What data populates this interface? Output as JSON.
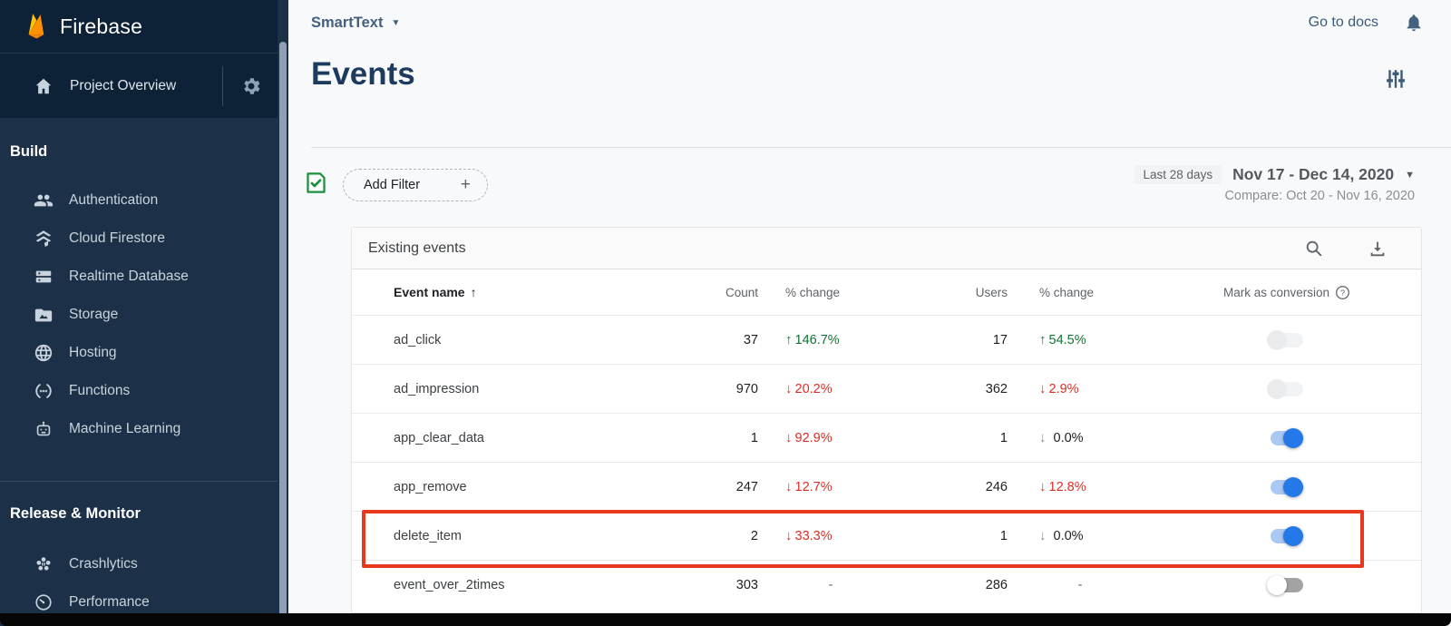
{
  "sidebar": {
    "brand": "Firebase",
    "project_overview_label": "Project Overview",
    "sections": [
      {
        "label": "Build",
        "items": [
          {
            "icon": "people-icon",
            "label": "Authentication"
          },
          {
            "icon": "firestore-icon",
            "label": "Cloud Firestore"
          },
          {
            "icon": "database-icon",
            "label": "Realtime Database"
          },
          {
            "icon": "storage-icon",
            "label": "Storage"
          },
          {
            "icon": "globe-icon",
            "label": "Hosting"
          },
          {
            "icon": "functions-icon",
            "label": "Functions"
          },
          {
            "icon": "robot-icon",
            "label": "Machine Learning"
          }
        ]
      },
      {
        "label": "Release & Monitor",
        "items": [
          {
            "icon": "crashlytics-icon",
            "label": "Crashlytics"
          },
          {
            "icon": "speedometer-icon",
            "label": "Performance"
          }
        ]
      }
    ]
  },
  "topbar": {
    "project_name": "SmartText",
    "go_to_docs": "Go to docs"
  },
  "page": {
    "title": "Events"
  },
  "filters": {
    "add_filter": "Add Filter",
    "plus": "+",
    "range_chip": "Last 28 days",
    "range": "Nov 17 - Dec 14, 2020",
    "compare": "Compare: Oct 20 - Nov 16, 2020"
  },
  "events_card": {
    "title": "Existing events",
    "columns": {
      "event_name": "Event name",
      "count": "Count",
      "count_change": "% change",
      "users": "Users",
      "users_change": "% change",
      "conversion": "Mark as conversion"
    },
    "rows": [
      {
        "name": "ad_click",
        "count": "37",
        "count_change": {
          "arrow": "up",
          "text": "146.7%",
          "tone": "green"
        },
        "users": "17",
        "users_change": {
          "arrow": "up",
          "text": "54.5%",
          "tone": "green"
        },
        "toggle": "off-faint",
        "highlighted": false
      },
      {
        "name": "ad_impression",
        "count": "970",
        "count_change": {
          "arrow": "down",
          "text": "20.2%",
          "tone": "red"
        },
        "users": "362",
        "users_change": {
          "arrow": "down",
          "text": "2.9%",
          "tone": "red"
        },
        "toggle": "off-faint",
        "highlighted": false
      },
      {
        "name": "app_clear_data",
        "count": "1",
        "count_change": {
          "arrow": "down",
          "text": "92.9%",
          "tone": "red"
        },
        "users": "1",
        "users_change": {
          "arrow": "down",
          "text": "0.0%",
          "tone": "neutral"
        },
        "toggle": "on",
        "highlighted": false
      },
      {
        "name": "app_remove",
        "count": "247",
        "count_change": {
          "arrow": "down",
          "text": "12.7%",
          "tone": "red"
        },
        "users": "246",
        "users_change": {
          "arrow": "down",
          "text": "12.8%",
          "tone": "red"
        },
        "toggle": "on",
        "highlighted": false
      },
      {
        "name": "delete_item",
        "count": "2",
        "count_change": {
          "arrow": "down",
          "text": "33.3%",
          "tone": "red"
        },
        "users": "1",
        "users_change": {
          "arrow": "down",
          "text": "0.0%",
          "tone": "neutral"
        },
        "toggle": "on",
        "highlighted": true
      },
      {
        "name": "event_over_2times",
        "count": "303",
        "count_change": {
          "arrow": null,
          "text": "-",
          "tone": "dash"
        },
        "users": "286",
        "users_change": {
          "arrow": null,
          "text": "-",
          "tone": "dash"
        },
        "toggle": "off",
        "highlighted": false
      }
    ]
  },
  "colors": {
    "accent_blue": "#1a73e8",
    "positive_green": "#137333",
    "negative_red": "#d93025",
    "highlight_red": "#e8391f",
    "sidebar_dark": "#0d2137",
    "sidebar_body": "#1c3047"
  }
}
